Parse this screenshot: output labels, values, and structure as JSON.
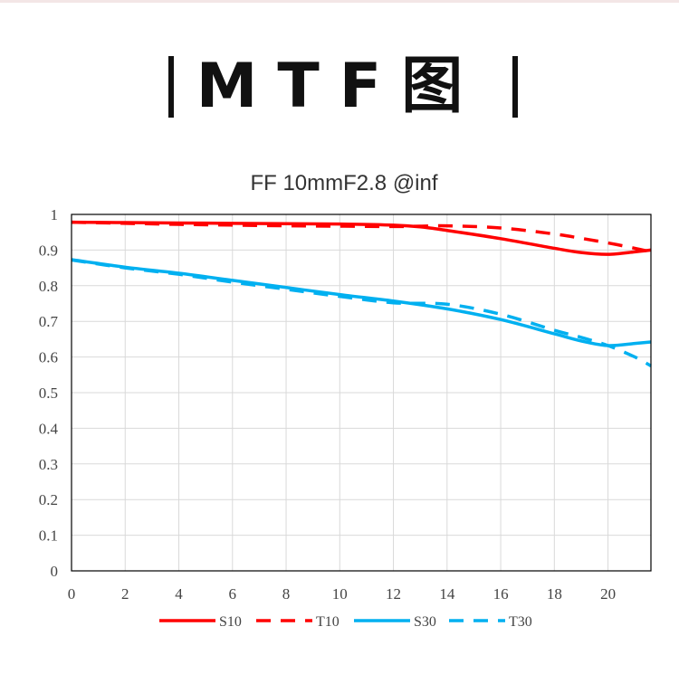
{
  "heading": {
    "text": "MTF图"
  },
  "chart_data": {
    "type": "line",
    "title": "FF 10mmF2.8 @inf",
    "xlabel": "",
    "ylabel": "",
    "xlim": [
      0,
      21.6
    ],
    "ylim": [
      0,
      1
    ],
    "x_ticks": [
      "0",
      "2",
      "4",
      "6",
      "8",
      "10",
      "12",
      "14",
      "16",
      "18",
      "20"
    ],
    "y_ticks": [
      "0",
      "0.1",
      "0.2",
      "0.3",
      "0.4",
      "0.5",
      "0.6",
      "0.7",
      "0.8",
      "0.9",
      "1"
    ],
    "grid": true,
    "legend_position": "bottom",
    "series": [
      {
        "name": "S10",
        "color": "#ff0000",
        "dash": false,
        "x": [
          0,
          2,
          4,
          6,
          8,
          10,
          12,
          13,
          14,
          16,
          18,
          19,
          20,
          21,
          21.6
        ],
        "y": [
          0.978,
          0.977,
          0.976,
          0.975,
          0.974,
          0.973,
          0.97,
          0.965,
          0.955,
          0.932,
          0.905,
          0.893,
          0.888,
          0.895,
          0.9
        ]
      },
      {
        "name": "T10",
        "color": "#ff0000",
        "dash": true,
        "x": [
          0,
          2,
          4,
          6,
          8,
          10,
          12,
          13,
          14,
          16,
          18,
          19,
          20,
          21,
          21.6
        ],
        "y": [
          0.978,
          0.975,
          0.972,
          0.97,
          0.968,
          0.967,
          0.966,
          0.967,
          0.968,
          0.962,
          0.945,
          0.933,
          0.92,
          0.905,
          0.895
        ]
      },
      {
        "name": "S30",
        "color": "#00b0f0",
        "dash": false,
        "x": [
          0,
          2,
          4,
          6,
          8,
          10,
          12,
          14,
          16,
          18,
          19,
          20,
          21,
          21.6
        ],
        "y": [
          0.873,
          0.852,
          0.835,
          0.815,
          0.795,
          0.775,
          0.757,
          0.735,
          0.705,
          0.665,
          0.645,
          0.632,
          0.638,
          0.642
        ]
      },
      {
        "name": "T30",
        "color": "#00b0f0",
        "dash": true,
        "x": [
          0,
          2,
          4,
          6,
          8,
          10,
          12,
          14,
          16,
          18,
          19,
          20,
          21,
          21.6
        ],
        "y": [
          0.872,
          0.85,
          0.832,
          0.81,
          0.79,
          0.77,
          0.752,
          0.748,
          0.72,
          0.675,
          0.655,
          0.632,
          0.6,
          0.575
        ]
      }
    ]
  }
}
